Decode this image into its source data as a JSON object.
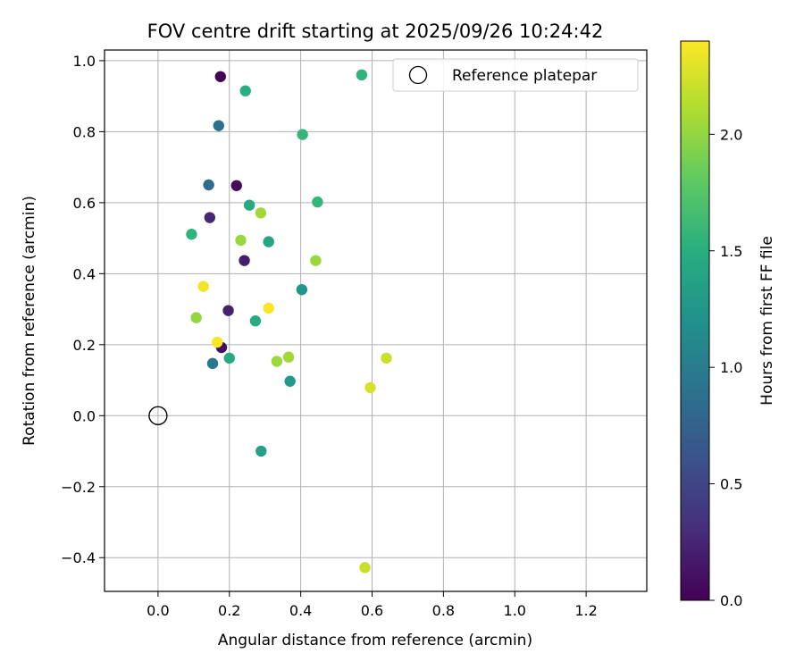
{
  "chart_data": {
    "type": "scatter",
    "title": "FOV centre drift starting at 2025/09/26 10:24:42",
    "xlabel": "Angular distance from reference (arcmin)",
    "ylabel": "Rotation from reference (arcmin)",
    "xlim": [
      -0.15,
      1.37
    ],
    "ylim": [
      -0.495,
      1.03
    ],
    "xticks": [
      0.0,
      0.2,
      0.4,
      0.6,
      0.8,
      1.0,
      1.2
    ],
    "xtick_labels": [
      "0.0",
      "0.2",
      "0.4",
      "0.6",
      "0.8",
      "1.0",
      "1.2"
    ],
    "yticks": [
      -0.4,
      -0.2,
      0.0,
      0.2,
      0.4,
      0.6,
      0.8,
      1.0
    ],
    "ytick_labels": [
      "−0.4",
      "−0.2",
      "0.0",
      "0.2",
      "0.4",
      "0.6",
      "0.8",
      "1.0"
    ],
    "grid": true,
    "legend": {
      "placement": "top-right",
      "entries": [
        "Reference platepar"
      ]
    },
    "reference_point": {
      "x": 0.0,
      "y": 0.0,
      "label": "Reference platepar"
    },
    "colorbar": {
      "label": "Hours from first FF file",
      "range": [
        0.0,
        2.4
      ],
      "ticks": [
        0.0,
        0.5,
        1.0,
        1.5,
        2.0
      ],
      "tick_labels": [
        "0.0",
        "0.5",
        "1.0",
        "1.5",
        "2.0"
      ],
      "colormap": "viridis"
    },
    "points": [
      {
        "x": 0.175,
        "y": 0.955,
        "c": 0.02
      },
      {
        "x": 0.22,
        "y": 0.648,
        "c": 0.05
      },
      {
        "x": 0.178,
        "y": 0.192,
        "c": 0.08
      },
      {
        "x": 0.145,
        "y": 0.558,
        "c": 0.25
      },
      {
        "x": 0.242,
        "y": 0.437,
        "c": 0.2
      },
      {
        "x": 0.197,
        "y": 0.296,
        "c": 0.22
      },
      {
        "x": 0.142,
        "y": 0.65,
        "c": 0.85
      },
      {
        "x": 0.17,
        "y": 0.817,
        "c": 0.9
      },
      {
        "x": 0.153,
        "y": 0.147,
        "c": 0.95
      },
      {
        "x": 0.403,
        "y": 0.355,
        "c": 1.25
      },
      {
        "x": 0.37,
        "y": 0.097,
        "c": 1.3
      },
      {
        "x": 0.289,
        "y": -0.1,
        "c": 1.35
      },
      {
        "x": 0.31,
        "y": 0.49,
        "c": 1.4
      },
      {
        "x": 0.256,
        "y": 0.593,
        "c": 1.45
      },
      {
        "x": 0.273,
        "y": 0.267,
        "c": 1.45
      },
      {
        "x": 0.2,
        "y": 0.162,
        "c": 1.45
      },
      {
        "x": 0.245,
        "y": 0.915,
        "c": 1.5
      },
      {
        "x": 0.094,
        "y": 0.511,
        "c": 1.55
      },
      {
        "x": 0.571,
        "y": 0.96,
        "c": 1.55
      },
      {
        "x": 0.405,
        "y": 0.792,
        "c": 1.58
      },
      {
        "x": 0.447,
        "y": 0.602,
        "c": 1.58
      },
      {
        "x": 0.107,
        "y": 0.276,
        "c": 2.0
      },
      {
        "x": 0.232,
        "y": 0.494,
        "c": 2.02
      },
      {
        "x": 0.288,
        "y": 0.571,
        "c": 2.05
      },
      {
        "x": 0.442,
        "y": 0.437,
        "c": 2.02
      },
      {
        "x": 0.333,
        "y": 0.153,
        "c": 2.03
      },
      {
        "x": 0.366,
        "y": 0.165,
        "c": 2.05
      },
      {
        "x": 0.595,
        "y": 0.079,
        "c": 2.25
      },
      {
        "x": 0.64,
        "y": 0.162,
        "c": 2.2
      },
      {
        "x": 0.58,
        "y": -0.428,
        "c": 2.2
      },
      {
        "x": 0.127,
        "y": 0.364,
        "c": 2.35
      },
      {
        "x": 0.166,
        "y": 0.207,
        "c": 2.38
      },
      {
        "x": 0.31,
        "y": 0.303,
        "c": 2.38
      }
    ]
  }
}
